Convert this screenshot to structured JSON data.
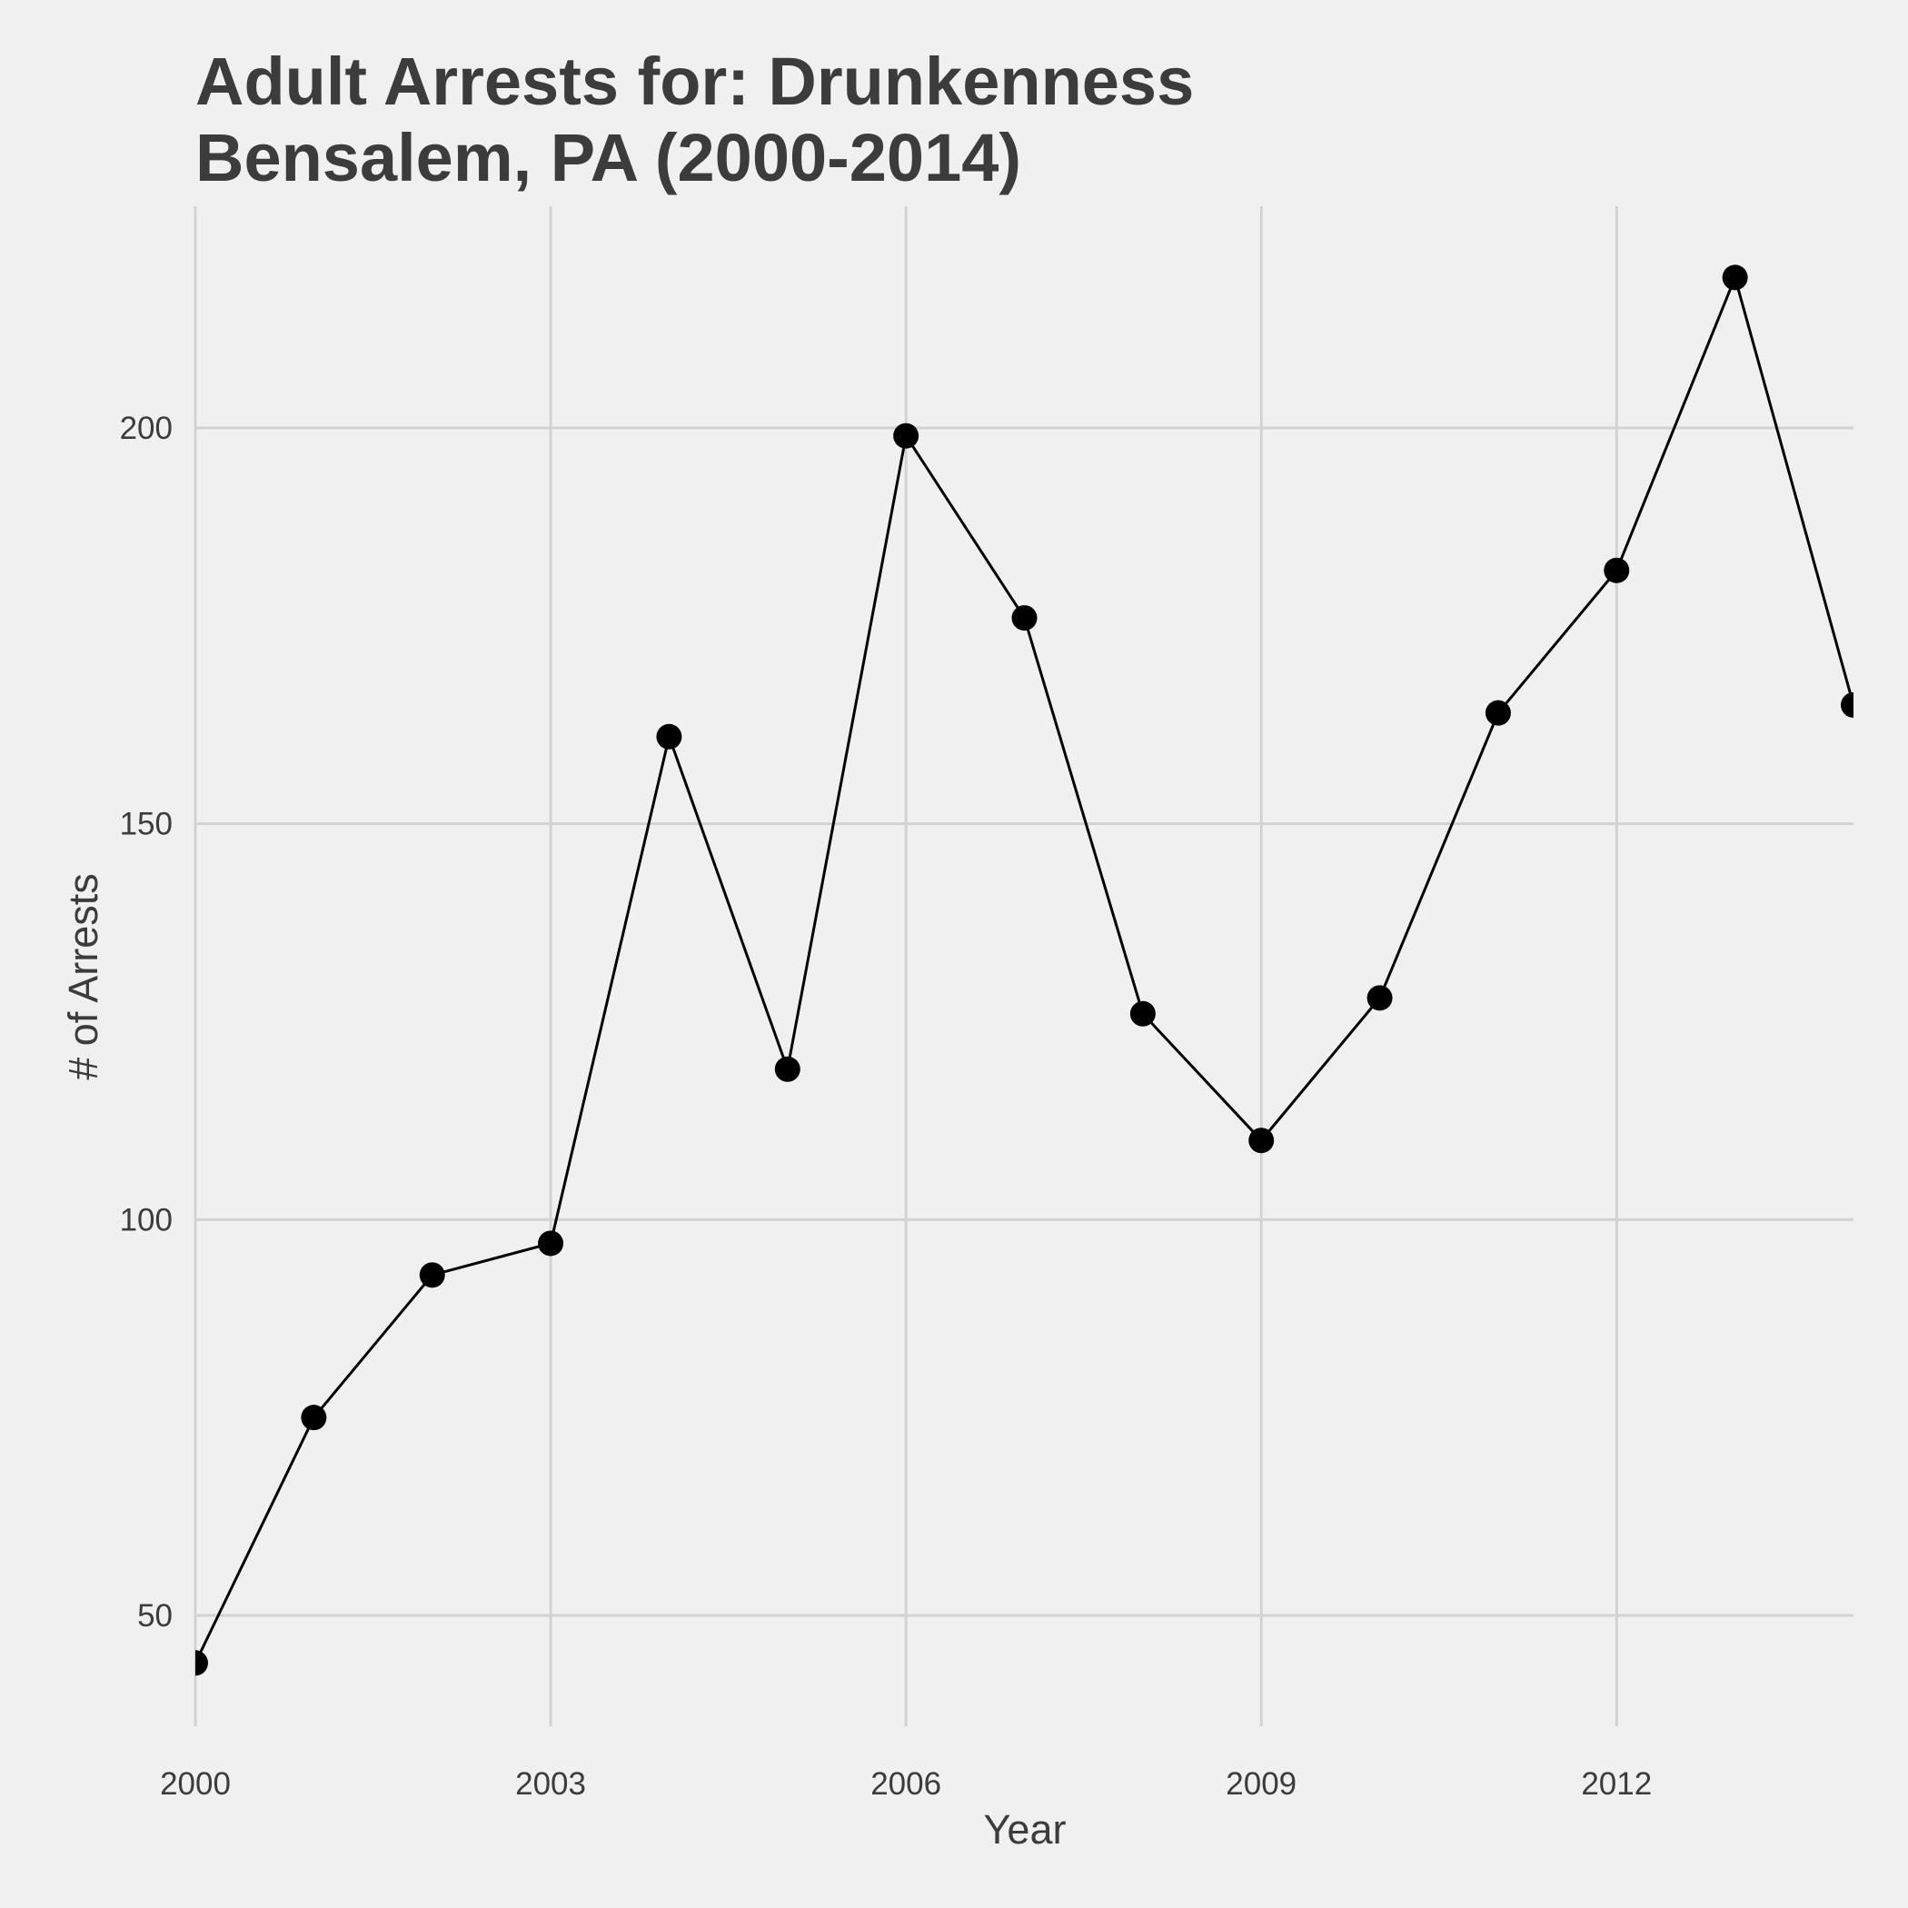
{
  "chart_data": {
    "type": "line",
    "title": "Adult Arrests for: Drunkenness",
    "subtitle": "Bensalem, PA (2000-2014)",
    "xlabel": "Year",
    "ylabel": "# of Arrests",
    "x": [
      2000,
      2001,
      2002,
      2003,
      2004,
      2005,
      2006,
      2007,
      2008,
      2009,
      2010,
      2011,
      2012,
      2013,
      2014
    ],
    "series": [
      {
        "values": [
          44,
          75,
          93,
          97,
          161,
          119,
          199,
          176,
          126,
          110,
          128,
          164,
          182,
          219,
          165
        ]
      }
    ],
    "xlim": [
      2000,
      2014
    ],
    "ylim": [
      36,
      228
    ],
    "x_ticks": [
      2000,
      2003,
      2006,
      2009,
      2012
    ],
    "x_tick_labels": [
      "2000",
      "2003",
      "2006",
      "2009",
      "2012"
    ],
    "y_ticks": [
      50,
      100,
      150,
      200
    ],
    "y_tick_labels": [
      "50",
      "100",
      "150",
      "200"
    ],
    "grid": true,
    "line_color": "#000000",
    "point_color": "#000000",
    "grid_color": "#d2d2d2",
    "background": "#f0f0f0",
    "text_color": "#3c3c3c"
  }
}
